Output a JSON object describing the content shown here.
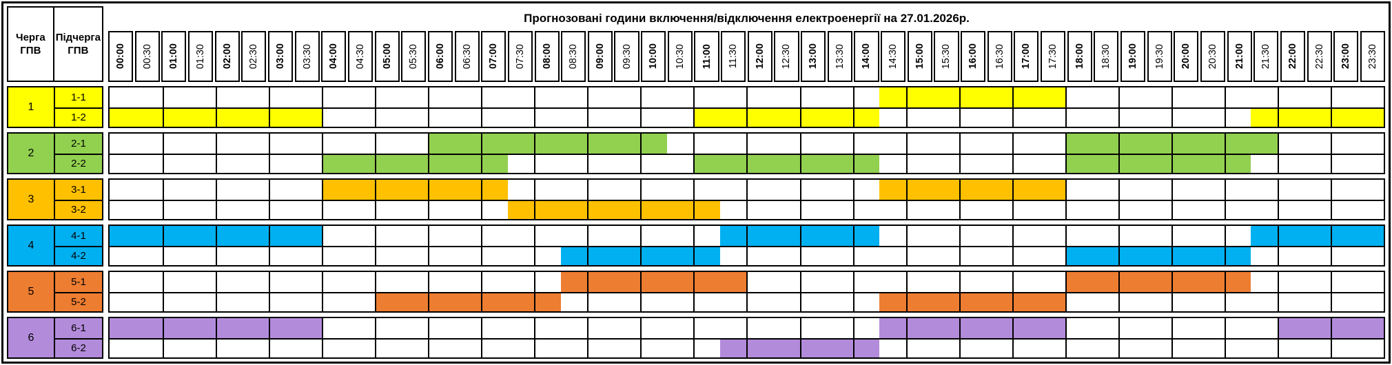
{
  "title": "Прогнозовані години включення/відключення електроенергії на 27.01.2026р.",
  "left_header": {
    "queue_col_label": "Черга ГПВ",
    "subqueue_col_label": "Підчерга ГПВ"
  },
  "time_slots": [
    "00:00",
    "00:30",
    "01:00",
    "01:30",
    "02:00",
    "02:30",
    "03:00",
    "03:30",
    "04:00",
    "04:30",
    "05:00",
    "05:30",
    "06:00",
    "06:30",
    "07:00",
    "07:30",
    "08:00",
    "08:30",
    "09:00",
    "09:30",
    "10:00",
    "10:30",
    "11:00",
    "11:30",
    "12:00",
    "12:30",
    "13:00",
    "13:30",
    "14:00",
    "14:30",
    "15:00",
    "15:30",
    "16:00",
    "16:30",
    "17:00",
    "17:30",
    "18:00",
    "18:30",
    "19:00",
    "19:30",
    "20:00",
    "20:30",
    "21:00",
    "21:30",
    "22:00",
    "22:30",
    "23:00",
    "23:30"
  ],
  "queues": [
    {
      "number": "1",
      "color": "#FFFF00",
      "subqueues": [
        {
          "label": "1-1",
          "off_intervals": [
            [
              "14:30",
              "18:00"
            ]
          ]
        },
        {
          "label": "1-2",
          "off_intervals": [
            [
              "00:00",
              "04:00"
            ],
            [
              "11:00",
              "14:30"
            ],
            [
              "21:30",
              "24:00"
            ]
          ]
        }
      ]
    },
    {
      "number": "2",
      "color": "#92D050",
      "subqueues": [
        {
          "label": "2-1",
          "off_intervals": [
            [
              "06:00",
              "10:30"
            ],
            [
              "18:00",
              "22:00"
            ]
          ]
        },
        {
          "label": "2-2",
          "off_intervals": [
            [
              "04:00",
              "07:30"
            ],
            [
              "11:00",
              "14:30"
            ],
            [
              "18:00",
              "21:30"
            ]
          ]
        }
      ]
    },
    {
      "number": "3",
      "color": "#FFC000",
      "subqueues": [
        {
          "label": "3-1",
          "off_intervals": [
            [
              "04:00",
              "07:30"
            ],
            [
              "14:30",
              "18:00"
            ]
          ]
        },
        {
          "label": "3-2",
          "off_intervals": [
            [
              "07:30",
              "11:30"
            ]
          ]
        }
      ]
    },
    {
      "number": "4",
      "color": "#00B0F0",
      "subqueues": [
        {
          "label": "4-1",
          "off_intervals": [
            [
              "00:00",
              "04:00"
            ],
            [
              "11:30",
              "14:30"
            ],
            [
              "21:30",
              "24:00"
            ]
          ]
        },
        {
          "label": "4-2",
          "off_intervals": [
            [
              "08:30",
              "11:30"
            ],
            [
              "18:00",
              "21:30"
            ]
          ]
        }
      ]
    },
    {
      "number": "5",
      "color": "#ED7D31",
      "subqueues": [
        {
          "label": "5-1",
          "off_intervals": [
            [
              "08:30",
              "12:00"
            ],
            [
              "18:00",
              "21:30"
            ]
          ]
        },
        {
          "label": "5-2",
          "off_intervals": [
            [
              "05:00",
              "08:30"
            ],
            [
              "14:30",
              "18:00"
            ]
          ]
        }
      ]
    },
    {
      "number": "6",
      "color": "#B38BDB",
      "subqueues": [
        {
          "label": "6-1",
          "off_intervals": [
            [
              "00:00",
              "04:00"
            ],
            [
              "14:30",
              "18:00"
            ],
            [
              "22:00",
              "24:00"
            ]
          ]
        },
        {
          "label": "6-2",
          "off_intervals": [
            [
              "11:30",
              "14:30"
            ]
          ]
        }
      ]
    }
  ]
}
